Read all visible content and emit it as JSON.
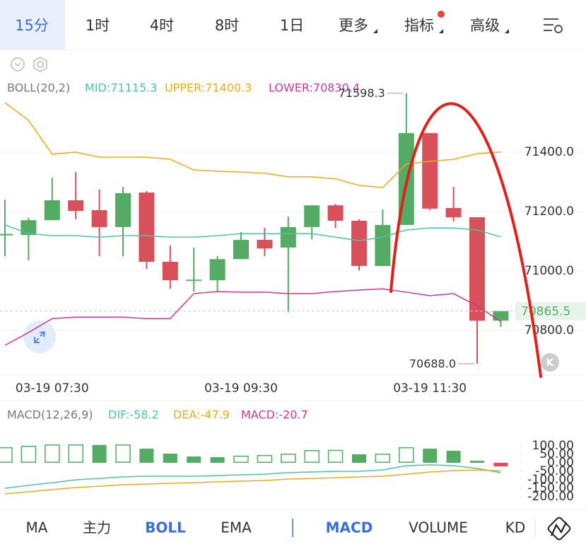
{
  "tabs": [
    "15分",
    "1时",
    "4时",
    "8时",
    "1日",
    "更多",
    "指标",
    "高级"
  ],
  "selected_tab": 0,
  "indicator_tabs": [
    "MA",
    "主力",
    "BOLL",
    "EMA",
    "MACD",
    "VOLUME",
    "KD"
  ],
  "active_indicators": [
    2,
    4
  ],
  "chart_data": [
    {
      "type": "candlestick",
      "legend_title": "BOLL(20,2)",
      "categories": [
        null,
        null,
        "03-19 07:30",
        null,
        null,
        null,
        null,
        null,
        null,
        null,
        "03-19 09:30",
        null,
        null,
        null,
        null,
        null,
        null,
        null,
        "03-19 11:30",
        null,
        null,
        null
      ],
      "open": [
        71120,
        71121,
        71171,
        71238,
        71205,
        71148,
        71264,
        71031,
        70967,
        70969,
        71040,
        71105,
        71079,
        71148,
        71221,
        71169,
        71017,
        71155,
        71464,
        71212,
        71181,
        70833
      ],
      "high": [
        71240,
        71179,
        71314,
        71333,
        71274,
        71283,
        71269,
        71086,
        71079,
        71050,
        71131,
        71145,
        71183,
        71221,
        71226,
        71174,
        71207,
        71598.3,
        71464,
        71283,
        71181,
        70865.5
      ],
      "low": [
        71050,
        71036,
        71171,
        71174,
        71050,
        71050,
        71007,
        70940,
        70931,
        70929,
        71040,
        71050,
        70862,
        71107,
        71145,
        71002,
        71017,
        71155,
        71205,
        71167,
        70688,
        70812
      ],
      "close": [
        71125,
        71171,
        71238,
        71202,
        71148,
        71262,
        71031,
        70969,
        70971,
        71040,
        71105,
        71076,
        71148,
        71221,
        71169,
        71017,
        71155,
        71464,
        71210,
        71181,
        70833,
        70865.5
      ],
      "up_color": "#54ac64",
      "down_color": "#d8505a",
      "series": [
        {
          "name": "MID:71115.3",
          "color": "#4dc3a6",
          "values": [
            71155,
            71126,
            71119,
            71119,
            71114,
            71119,
            71119,
            71114,
            71114,
            71119,
            71126,
            71126,
            71126,
            71126,
            71114,
            71102,
            71114,
            71138,
            71145,
            71145,
            71138,
            71115.3
          ]
        },
        {
          "name": "UPPER:71400.3",
          "color": "#e6ac1e",
          "values": [
            71567,
            71507,
            71393,
            71400,
            71383,
            71383,
            71383,
            71376,
            71340,
            71336,
            71333,
            71329,
            71317,
            71317,
            71310,
            71288,
            71281,
            71360,
            71369,
            71376,
            71395,
            71400.3
          ]
        },
        {
          "name": "LOWER:70830.4",
          "color": "#c83a8e",
          "values": [
            70750,
            70793,
            70840,
            70845,
            70845,
            70845,
            70840,
            70840,
            70924,
            70931,
            70929,
            70929,
            70924,
            70924,
            70931,
            70936,
            70940,
            70929,
            70917,
            70924,
            70883,
            70830.4
          ]
        }
      ],
      "max_label": "71598.3",
      "min_label": "70688.0",
      "last_price": {
        "value": 70865.5,
        "label": "70865.5"
      },
      "ylim": [
        70650,
        71733.3
      ],
      "yticks": [
        {
          "value": 71400,
          "label": "71400.0"
        },
        {
          "value": 71200,
          "label": "71200.0"
        },
        {
          "value": 71000,
          "label": "71000.0"
        },
        {
          "value": 70800,
          "label": "70800.0"
        }
      ],
      "grid": true
    },
    {
      "type": "macd",
      "legend_title": "MACD(12,26,9)",
      "series": [
        {
          "name": "DIF:-58.2",
          "color": "#4dc3a6",
          "values": [
            -150,
            -133,
            -117,
            -100,
            -92,
            -83,
            -79,
            -79,
            -79,
            -75,
            -71,
            -67,
            -58,
            -54,
            -50,
            -50,
            -42,
            -17,
            -12,
            -17,
            -33,
            -58.2
          ]
        },
        {
          "name": "DEA:-47.9",
          "color": "#e6ac1e",
          "values": [
            -183,
            -171,
            -158,
            -146,
            -138,
            -129,
            -125,
            -121,
            -117,
            -112,
            -108,
            -104,
            -96,
            -92,
            -88,
            -83,
            -79,
            -67,
            -54,
            -46,
            -42,
            -47.9
          ]
        },
        {
          "name": "MACD:-20.7",
          "color": "#c83a8e",
          "values": [
            92,
            100,
            108,
            108,
            105,
            108,
            83,
            54,
            37,
            33,
            42,
            46,
            54,
            75,
            76,
            50,
            54,
            92,
            83,
            71,
            12,
            -20.7
          ]
        }
      ],
      "up_color": "#54ac64",
      "down_color": "#d8505a",
      "ylim": [
        -275,
        225
      ],
      "yticks": [
        {
          "value": 100,
          "label": "100.00"
        },
        {
          "value": 50,
          "label": "50.00"
        },
        {
          "value": 0,
          "label": "0.00"
        },
        {
          "value": -50,
          "label": "-50.00"
        },
        {
          "value": -100,
          "label": "-100.00"
        },
        {
          "value": -150,
          "label": "-150.00"
        },
        {
          "value": -200,
          "label": "-200.00"
        }
      ]
    }
  ]
}
